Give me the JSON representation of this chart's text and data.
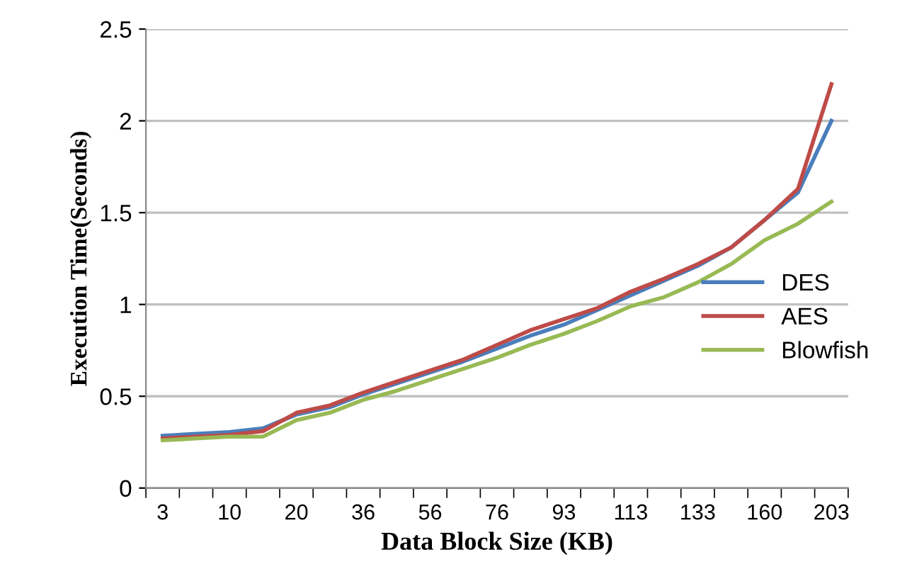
{
  "chart_data": {
    "type": "line",
    "xlabel": "Data Block Size (KB)",
    "ylabel": "Execution Time(Seconds)",
    "categories": [
      "3",
      null,
      "10",
      null,
      "20",
      null,
      "36",
      null,
      "56",
      null,
      "76",
      null,
      "93",
      null,
      "113",
      null,
      "133",
      null,
      "160",
      null,
      "203"
    ],
    "series": [
      {
        "name": "DES",
        "color": "#4a7ebb",
        "values": [
          0.285,
          0.295,
          0.305,
          0.325,
          0.4,
          0.44,
          0.51,
          0.57,
          0.63,
          0.69,
          0.76,
          0.83,
          0.89,
          0.97,
          1.05,
          1.13,
          1.21,
          1.31,
          1.46,
          1.61,
          2.0
        ]
      },
      {
        "name": "AES",
        "color": "#be4b48",
        "values": [
          0.27,
          0.28,
          0.29,
          0.31,
          0.41,
          0.45,
          0.52,
          0.58,
          0.64,
          0.7,
          0.78,
          0.86,
          0.92,
          0.98,
          1.07,
          1.14,
          1.22,
          1.31,
          1.46,
          1.63,
          2.2
        ]
      },
      {
        "name": "Blowfish",
        "color": "#98b954",
        "values": [
          0.26,
          0.27,
          0.28,
          0.28,
          0.37,
          0.41,
          0.48,
          0.53,
          0.59,
          0.65,
          0.71,
          0.78,
          0.84,
          0.91,
          0.99,
          1.04,
          1.12,
          1.22,
          1.35,
          1.44,
          1.56
        ]
      }
    ],
    "ylim": [
      0,
      2.5
    ],
    "yticks": [
      0,
      {
        "value": 0.5,
        "label": "0.5"
      },
      1,
      {
        "value": 1.5,
        "label": "1.5"
      },
      2,
      {
        "value": 2.5,
        "label": "2.5"
      }
    ],
    "grid": "y",
    "legend": "right",
    "marker": "none",
    "line_style": "solid"
  }
}
